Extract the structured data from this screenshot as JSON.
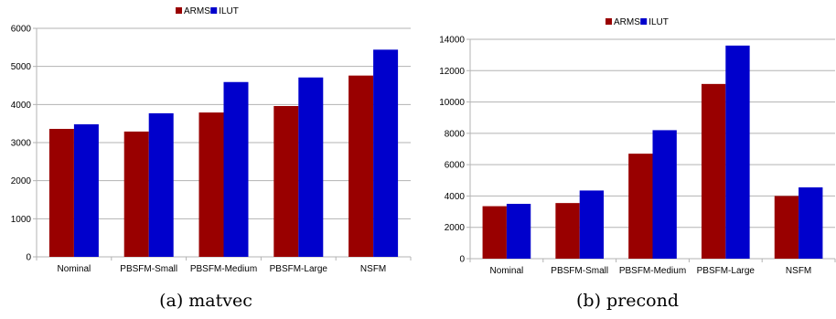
{
  "colors": {
    "ARMS": "#990000",
    "ILUT": "#0000cc",
    "grid": "#b3b3b3",
    "axis": "#b3b3b3"
  },
  "chart_data": [
    {
      "type": "bar",
      "caption": "(a) matvec",
      "categories": [
        "Nominal",
        "PBSFM-Small",
        "PBSFM-Medium",
        "PBSFM-Large",
        "NSFM"
      ],
      "series": [
        {
          "name": "ARMS",
          "values": [
            3360,
            3290,
            3790,
            3960,
            4760
          ]
        },
        {
          "name": "ILUT",
          "values": [
            3480,
            3770,
            4590,
            4710,
            5440
          ]
        }
      ],
      "ylim": [
        0,
        6000
      ],
      "yticks": [
        0,
        1000,
        2000,
        3000,
        4000,
        5000,
        6000
      ],
      "grid": true,
      "legend": "top-center"
    },
    {
      "type": "bar",
      "caption": "(b) precond",
      "categories": [
        "Nominal",
        "PBSFM-Small",
        "PBSFM-Medium",
        "PBSFM-Large",
        "NSFM"
      ],
      "series": [
        {
          "name": "ARMS",
          "values": [
            3350,
            3550,
            6700,
            11150,
            4000
          ]
        },
        {
          "name": "ILUT",
          "values": [
            3500,
            4350,
            8200,
            13600,
            4550
          ]
        }
      ],
      "ylim": [
        0,
        14000
      ],
      "yticks": [
        0,
        2000,
        4000,
        6000,
        8000,
        10000,
        12000,
        14000
      ],
      "grid": true,
      "legend": "top-center"
    }
  ]
}
